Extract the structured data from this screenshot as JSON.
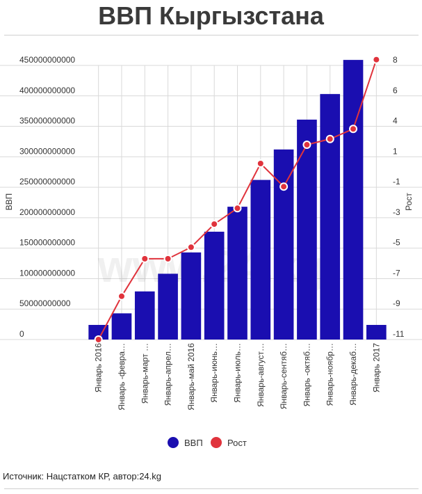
{
  "title": "ВВП Кыргызстана",
  "source": "Источник: Нацстатком КР, автор:24.kg",
  "watermark": "www.24.kg",
  "colors": {
    "bar": "#1a0eb0",
    "line": "#e0333c",
    "grid": "#d9d9d9",
    "axis": "#333333"
  },
  "chart_data": {
    "type": "bar",
    "categories": [
      "Январь 2016",
      "Январь -февра…",
      "Январь-март …",
      "Январь-апрел…",
      "Январь-май 2016",
      "Январь-июнь…",
      "Январь-июль…",
      "Январь-август…",
      "Январь-сентяб…",
      "Январь -октяб…",
      "Январь-ноябр…",
      "Январь-декаб…",
      "Январь 2017"
    ],
    "series": [
      {
        "name": "ВВП",
        "type": "bar",
        "axis": "left",
        "values": [
          24000000000,
          43000000000,
          79000000000,
          108000000000,
          143000000000,
          177000000000,
          218000000000,
          262000000000,
          312000000000,
          361000000000,
          403000000000,
          459000000000,
          24000000000
        ]
      },
      {
        "name": "Рост",
        "type": "line",
        "axis": "right",
        "values": [
          -11,
          -8,
          -5.4,
          -5.4,
          -4.6,
          -3,
          -1.9,
          1.2,
          -0.4,
          2.5,
          2.9,
          3.6,
          8.4
        ]
      }
    ],
    "ylabel": "ВВП",
    "y2label": "Рост",
    "ylim": [
      0,
      450000000000
    ],
    "y2lim": [
      -11,
      8
    ],
    "yticks": [
      "0",
      "50000000000",
      "100000000000",
      "150000000000",
      "200000000000",
      "250000000000",
      "300000000000",
      "350000000000",
      "400000000000",
      "450000000000"
    ],
    "y2ticks": [
      "-11",
      "-9",
      "-7",
      "-5",
      "-3",
      "-1",
      "1",
      "4",
      "6",
      "8"
    ],
    "grid": true,
    "legend": "bottom"
  }
}
